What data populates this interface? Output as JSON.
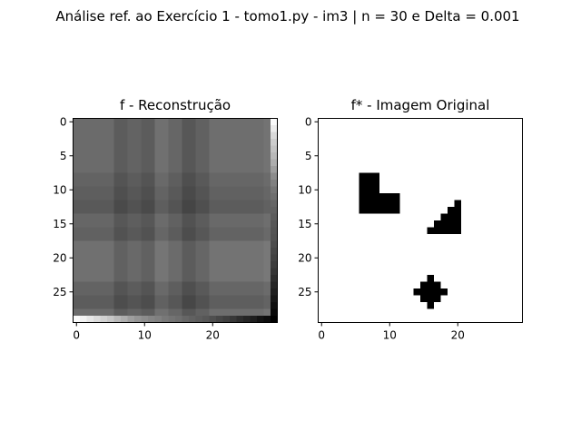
{
  "figure": {
    "suptitle": "Análise ref. ao Exercício 1 - tomo1.py - im3 | n = 30 e Delta = 0.001"
  },
  "chart_data": [
    {
      "type": "heatmap",
      "colormap": "gray",
      "title": "f - Reconstrução",
      "n": 30,
      "xlim": [
        -0.5,
        29.5
      ],
      "ylim": [
        29.5,
        -0.5
      ],
      "xticks": [
        0,
        10,
        20
      ],
      "yticks": [
        0,
        5,
        10,
        15,
        20,
        25
      ],
      "base_gray": 0.42,
      "col_offsets": [
        0.0,
        0.0,
        0.0,
        0.0,
        0.0,
        0.0,
        -0.06,
        -0.06,
        -0.03,
        -0.03,
        -0.06,
        -0.06,
        0.02,
        0.02,
        -0.02,
        -0.02,
        -0.08,
        -0.08,
        -0.04,
        -0.04,
        0.01,
        0.01,
        0.01,
        0.01,
        0.01,
        0.01,
        0.01,
        0.01,
        0.03,
        0.03
      ],
      "row_offsets": [
        0.0,
        0.0,
        0.0,
        0.0,
        0.0,
        0.0,
        0.0,
        0.0,
        -0.03,
        -0.03,
        -0.05,
        -0.05,
        -0.07,
        -0.07,
        -0.02,
        -0.02,
        -0.04,
        -0.04,
        0.02,
        0.02,
        0.02,
        0.02,
        0.02,
        0.02,
        -0.03,
        -0.03,
        -0.06,
        -0.06,
        0.0,
        0.0
      ],
      "right_column_ramp": [
        0.98,
        0.92,
        0.85,
        0.8,
        0.76,
        0.72,
        0.68,
        0.62,
        0.55,
        0.5,
        0.46,
        0.43,
        0.4,
        0.38,
        0.36,
        0.34,
        0.33,
        0.32,
        0.3,
        0.28,
        0.26,
        0.24,
        0.21,
        0.18,
        0.15,
        0.12,
        0.09,
        0.06,
        0.03,
        0.0
      ],
      "bottom_row_ramp": [
        0.98,
        0.95,
        0.9,
        0.86,
        0.82,
        0.78,
        0.72,
        0.68,
        0.62,
        0.58,
        0.55,
        0.52,
        0.5,
        0.47,
        0.45,
        0.43,
        0.4,
        0.38,
        0.36,
        0.34,
        0.31,
        0.28,
        0.25,
        0.22,
        0.18,
        0.15,
        0.12,
        0.08,
        0.05,
        0.0
      ]
    },
    {
      "type": "heatmap",
      "colormap": "gray",
      "title": "f* - Imagem Original",
      "n": 30,
      "xlim": [
        -0.5,
        29.5
      ],
      "ylim": [
        29.5,
        -0.5
      ],
      "xticks": [
        0,
        10,
        20
      ],
      "yticks": [
        0,
        5,
        10,
        15,
        20,
        25
      ],
      "background_value": 1,
      "black_pixels": [
        [
          8,
          6
        ],
        [
          8,
          7
        ],
        [
          8,
          8
        ],
        [
          9,
          6
        ],
        [
          9,
          7
        ],
        [
          9,
          8
        ],
        [
          10,
          6
        ],
        [
          10,
          7
        ],
        [
          10,
          8
        ],
        [
          11,
          6
        ],
        [
          11,
          7
        ],
        [
          11,
          8
        ],
        [
          11,
          9
        ],
        [
          11,
          10
        ],
        [
          11,
          11
        ],
        [
          12,
          6
        ],
        [
          12,
          7
        ],
        [
          12,
          8
        ],
        [
          12,
          9
        ],
        [
          12,
          10
        ],
        [
          12,
          11
        ],
        [
          13,
          6
        ],
        [
          13,
          7
        ],
        [
          13,
          8
        ],
        [
          13,
          9
        ],
        [
          13,
          10
        ],
        [
          13,
          11
        ],
        [
          12,
          20
        ],
        [
          13,
          19
        ],
        [
          13,
          20
        ],
        [
          14,
          18
        ],
        [
          14,
          19
        ],
        [
          14,
          20
        ],
        [
          15,
          17
        ],
        [
          15,
          18
        ],
        [
          15,
          19
        ],
        [
          15,
          20
        ],
        [
          16,
          16
        ],
        [
          16,
          17
        ],
        [
          16,
          18
        ],
        [
          16,
          19
        ],
        [
          16,
          20
        ],
        [
          23,
          16
        ],
        [
          24,
          15
        ],
        [
          24,
          16
        ],
        [
          24,
          17
        ],
        [
          25,
          14
        ],
        [
          25,
          15
        ],
        [
          25,
          16
        ],
        [
          25,
          17
        ],
        [
          25,
          18
        ],
        [
          26,
          15
        ],
        [
          26,
          16
        ],
        [
          26,
          17
        ],
        [
          27,
          16
        ]
      ]
    }
  ]
}
